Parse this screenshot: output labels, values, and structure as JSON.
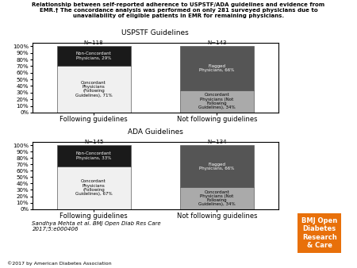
{
  "title": "Relationship between self-reported adherence to USPSTF/ADA guidelines and evidence from\nEMR.† The concordance analysis was performed on only 281 surveyed physicians due to\nunavailability of eligible patients in EMR for remaining physicians.",
  "annotations": [
    {
      "text": "Sandhya Mehta et al. BMJ Open Diab Res Care\n2017;5:e000406"
    },
    {
      "text": "©2017 by American Diabetes Association"
    },
    {
      "text": "BMJ Open\nDiabetes\nResearch\n& Care",
      "color": "#E8700A"
    }
  ],
  "chart_data": [
    {
      "type": "bar",
      "stacked": true,
      "data_labels": true,
      "title": "USPSTF Guidelines",
      "categories": [
        "Following guidelines",
        "Not following guidelines"
      ],
      "series": [
        {
          "values": [
            71,
            34
          ],
          "colors": [
            "#f0f0f0",
            "#aaaaaa"
          ],
          "value_labels": [
            "Concordant\nPhysicians\n(Following\nGuidelines), 71%",
            "Concordant\nPhysicians (Not\nFollowing\nGuidelines), 34%"
          ]
        },
        {
          "values": [
            29,
            66
          ],
          "colors": [
            "#1a1a1a",
            "#555555"
          ],
          "value_labels": [
            "Non-Concordant\nPhysicians, 29%",
            "Flagged\nPhysicians, 66%"
          ]
        }
      ],
      "annotations": [
        "N=118",
        "N=143"
      ],
      "ylim": [
        0,
        105
      ],
      "yticks": [
        {
          "value": 0,
          "label": "0%"
        },
        {
          "value": 10,
          "label": "10%"
        },
        {
          "value": 20,
          "label": "20%"
        },
        {
          "value": 30,
          "label": "30%"
        },
        {
          "value": 40,
          "label": "40%"
        },
        {
          "value": 50,
          "label": "50%"
        },
        {
          "value": 60,
          "label": "60%"
        },
        {
          "value": 70,
          "label": "70%"
        },
        {
          "value": 80,
          "label": "80%"
        },
        {
          "value": 90,
          "label": "90%"
        },
        {
          "value": 100,
          "label": "100%"
        }
      ]
    },
    {
      "type": "bar",
      "stacked": true,
      "data_labels": true,
      "title": "ADA Guidelines",
      "categories": [
        "Following guidelines",
        "Not following guidelines"
      ],
      "series": [
        {
          "values": [
            67,
            34
          ],
          "colors": [
            "#f0f0f0",
            "#aaaaaa"
          ],
          "value_labels": [
            "Concordant\nPhysicians\n(Following\nGuidelines), 67%",
            "Concordant\nPhysicians (Not\nFollowing\nGuidelines), 34%"
          ]
        },
        {
          "values": [
            33,
            66
          ],
          "colors": [
            "#1a1a1a",
            "#555555"
          ],
          "value_labels": [
            "Non-Concordant\nPhysicians, 33%",
            "Flagged\nPhysicians, 66%"
          ]
        }
      ],
      "annotations": [
        "N=145",
        "N=134"
      ],
      "ylim": [
        0,
        105
      ],
      "yticks": [
        {
          "value": 0,
          "label": "0%"
        },
        {
          "value": 10,
          "label": "10%"
        },
        {
          "value": 20,
          "label": "20%"
        },
        {
          "value": 30,
          "label": "30%"
        },
        {
          "value": 40,
          "label": "40%"
        },
        {
          "value": 50,
          "label": "50%"
        },
        {
          "value": 60,
          "label": "60%"
        },
        {
          "value": 70,
          "label": "70%"
        },
        {
          "value": 80,
          "label": "80%"
        },
        {
          "value": 90,
          "label": "90%"
        },
        {
          "value": 100,
          "label": "100%"
        }
      ]
    }
  ]
}
